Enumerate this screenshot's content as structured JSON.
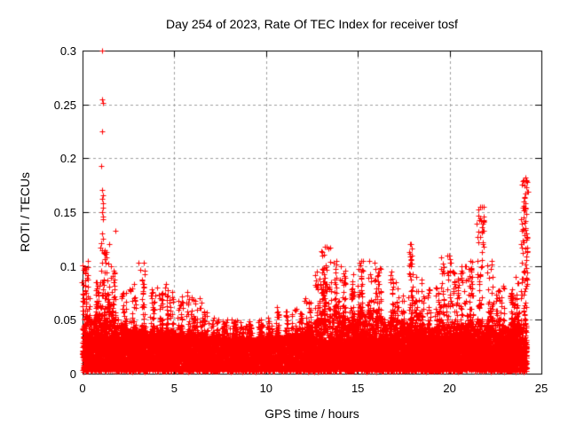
{
  "artifact_bar": {
    "color": "#2a4cd8"
  },
  "colors": {
    "background": "#ffffff",
    "marker": "#ff0000",
    "grid": "#a0a0a0",
    "axis": "#000000",
    "text": "#000000"
  },
  "chart_data": {
    "type": "scatter",
    "title": "Day 254 of 2023, Rate Of TEC Index for receiver tosf",
    "xlabel": "GPS time / hours",
    "ylabel": "ROTI / TECUs",
    "xlim": [
      0,
      25
    ],
    "ylim": [
      0,
      0.3
    ],
    "x_ticks": [
      0,
      5,
      10,
      15,
      20,
      25
    ],
    "x_tick_labels": [
      "0",
      "5",
      "10",
      "15",
      "20",
      "25"
    ],
    "y_ticks": [
      0,
      0.05,
      0.1,
      0.15,
      0.2,
      0.25,
      0.3
    ],
    "y_tick_labels": [
      "0",
      "0.05",
      "0.1",
      "0.15",
      "0.2",
      "0.25",
      "0.3"
    ],
    "grid": true,
    "legend": "none",
    "marker": {
      "shape": "plus",
      "size": 7
    },
    "data_x_range": [
      0,
      24.2
    ],
    "approx_point_count": 18000,
    "baseline_band": {
      "y_min": 0.002,
      "y_dense_top": 0.03
    },
    "envelope": {
      "bin_hours": 0.5,
      "start_hour": 0,
      "env_max": [
        0.105,
        0.085,
        0.12,
        0.1,
        0.075,
        0.083,
        0.103,
        0.078,
        0.08,
        0.083,
        0.072,
        0.076,
        0.07,
        0.058,
        0.052,
        0.05,
        0.05,
        0.048,
        0.049,
        0.05,
        0.052,
        0.062,
        0.058,
        0.06,
        0.07,
        0.095,
        0.118,
        0.105,
        0.1,
        0.092,
        0.105,
        0.105,
        0.098,
        0.095,
        0.085,
        0.12,
        0.09,
        0.078,
        0.08,
        0.11,
        0.095,
        0.1,
        0.105,
        0.155,
        0.105,
        0.082,
        0.078,
        0.09,
        0.18
      ],
      "solid_top": [
        0.05,
        0.05,
        0.055,
        0.05,
        0.042,
        0.04,
        0.04,
        0.038,
        0.038,
        0.04,
        0.038,
        0.036,
        0.036,
        0.034,
        0.033,
        0.032,
        0.033,
        0.032,
        0.032,
        0.033,
        0.033,
        0.034,
        0.035,
        0.038,
        0.042,
        0.048,
        0.055,
        0.055,
        0.052,
        0.05,
        0.055,
        0.055,
        0.052,
        0.05,
        0.048,
        0.048,
        0.045,
        0.042,
        0.042,
        0.044,
        0.044,
        0.045,
        0.046,
        0.048,
        0.05,
        0.045,
        0.044,
        0.046,
        0.075
      ]
    },
    "outliers": [
      [
        1.04,
        0.3
      ],
      [
        1.06,
        0.255
      ],
      [
        1.09,
        0.251
      ],
      [
        1.07,
        0.225
      ],
      [
        1.01,
        0.193
      ],
      [
        1.08,
        0.171
      ],
      [
        1.1,
        0.166
      ],
      [
        1.06,
        0.162
      ],
      [
        1.12,
        0.158
      ],
      [
        1.09,
        0.154
      ],
      [
        1.07,
        0.15
      ],
      [
        1.11,
        0.146
      ],
      [
        1.13,
        0.143
      ],
      [
        1.8,
        0.133
      ],
      [
        1.06,
        0.13
      ],
      [
        1.1,
        0.125
      ],
      [
        3.05,
        0.103
      ],
      [
        13.3,
        0.118
      ],
      [
        15.3,
        0.105
      ],
      [
        17.82,
        0.12
      ],
      [
        19.98,
        0.11
      ],
      [
        21.78,
        0.155
      ],
      [
        24.05,
        0.18
      ]
    ],
    "streaks": [
      {
        "x": 0.05,
        "x_spread": 0.1,
        "y_min": 0.05,
        "y_max": 0.106,
        "n": 14
      },
      {
        "x": 1.08,
        "x_spread": 0.12,
        "y_min": 0.05,
        "y_max": 0.122,
        "n": 30
      },
      {
        "x": 13.3,
        "x_spread": 0.25,
        "y_min": 0.06,
        "y_max": 0.118,
        "n": 25
      },
      {
        "x": 17.85,
        "x_spread": 0.08,
        "y_min": 0.06,
        "y_max": 0.12,
        "n": 12
      },
      {
        "x": 20.0,
        "x_spread": 0.06,
        "y_min": 0.06,
        "y_max": 0.11,
        "n": 10
      },
      {
        "x": 21.8,
        "x_spread": 0.07,
        "y_min": 0.095,
        "y_max": 0.157,
        "n": 16
      },
      {
        "x": 24.08,
        "x_spread": 0.18,
        "y_min": 0.06,
        "y_max": 0.182,
        "n": 55
      }
    ]
  }
}
